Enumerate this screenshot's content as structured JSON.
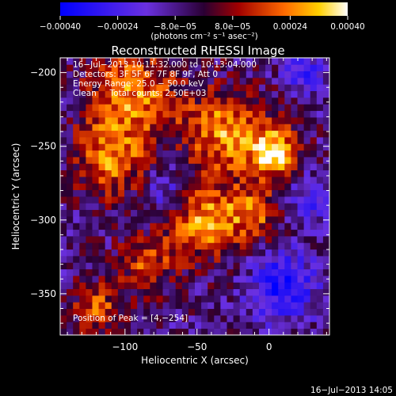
{
  "chart_data": {
    "type": "heatmap",
    "title": "Reconstructed RHESSI Image",
    "xlabel": "Heliocentric X (arcsec)",
    "ylabel": "Heliocentric Y (arcsec)",
    "xlim": [
      -145,
      42
    ],
    "ylim": [
      -378,
      -190
    ],
    "x_ticks": [
      -100,
      -50,
      0
    ],
    "x_tick_labels": [
      "−100",
      "−50",
      "0"
    ],
    "y_ticks": [
      -200,
      -250,
      -300,
      -350
    ],
    "y_tick_labels": [
      "−200",
      "−250",
      "−300",
      "−350"
    ],
    "colorbar": {
      "range": [
        -0.0004,
        0.0004
      ],
      "tick_values": [
        -0.0004,
        -0.00024,
        -8e-05,
        8e-05,
        0.00024,
        0.0004
      ],
      "tick_labels": [
        "−0.00040",
        "−0.00024",
        "−8.0e−05",
        "8.0e−05",
        "0.00024",
        "0.00040"
      ],
      "unit_label": "(photons cm⁻² s⁻¹ asec⁻²)",
      "colors": [
        "#0000ff",
        "#6a30e0",
        "#2a0033",
        "#a00000",
        "#ff6a00",
        "#ffd000",
        "#ffffff"
      ]
    },
    "annotations": [
      "16−Jul−2013 10:11:32.000 to 10:13:04.000",
      "Detectors: 3F 5F 6F 7F 8F 9F, Att 0",
      "Energy Range: 25.0 − 50.0 keV",
      "Clean     Total counts: 2.50E+03"
    ],
    "peak_label": "Position of Peak = [4,−254]",
    "peak": [
      4,
      -254
    ],
    "grid": false,
    "image_grid": {
      "x_count": 42,
      "y_count": 42
    },
    "intensity_sources": [
      {
        "x": -95,
        "y": -215,
        "sigma": 22,
        "amp": 0.0003
      },
      {
        "x": -30,
        "y": -240,
        "sigma": 20,
        "amp": 0.00032
      },
      {
        "x": 4,
        "y": -254,
        "sigma": 12,
        "amp": 0.0004
      },
      {
        "x": -110,
        "y": -260,
        "sigma": 18,
        "amp": 0.00028
      },
      {
        "x": -45,
        "y": -300,
        "sigma": 18,
        "amp": 0.00034
      },
      {
        "x": -10,
        "y": -295,
        "sigma": 12,
        "amp": 0.00026
      },
      {
        "x": -85,
        "y": -330,
        "sigma": 14,
        "amp": 0.00022
      },
      {
        "x": -120,
        "y": -360,
        "sigma": 12,
        "amp": 0.00024
      },
      {
        "x": 25,
        "y": -200,
        "sigma": 10,
        "amp": -0.0002
      },
      {
        "x": 10,
        "y": -345,
        "sigma": 16,
        "amp": -0.00028
      },
      {
        "x": 30,
        "y": -285,
        "sigma": 12,
        "amp": -0.00016
      },
      {
        "x": -70,
        "y": -280,
        "sigma": 12,
        "amp": -0.00018
      }
    ]
  },
  "footer": {
    "timestamp": "16−Jul−2013 14:05"
  }
}
